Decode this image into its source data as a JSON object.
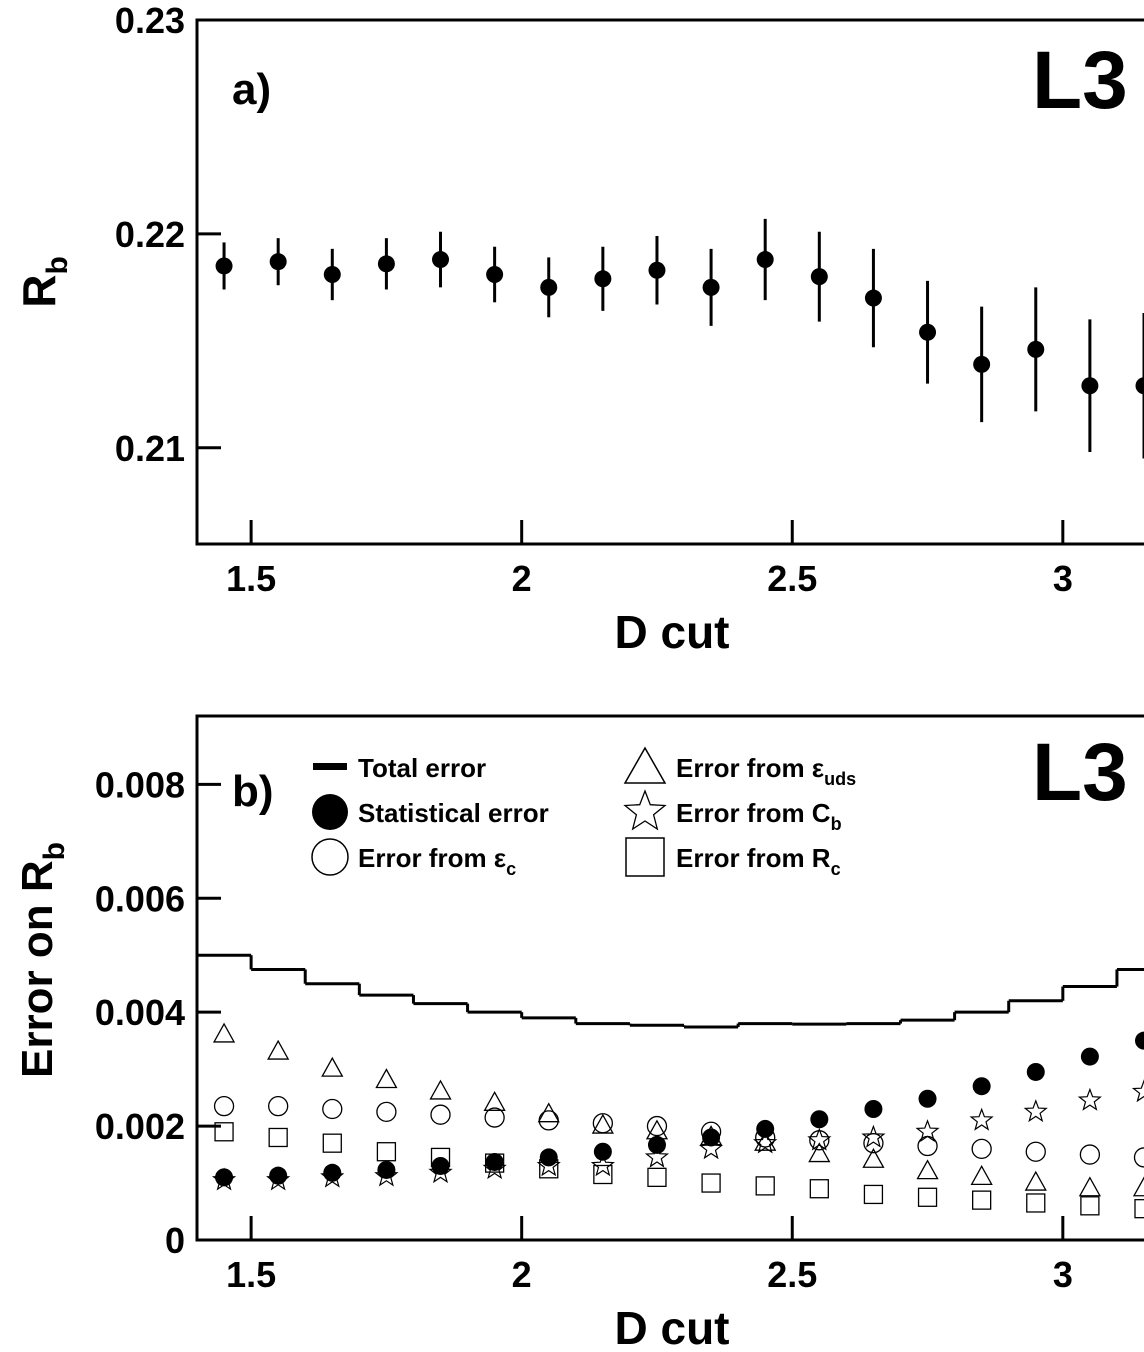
{
  "chart_data": [
    {
      "type": "scatter",
      "panel_label": "a)",
      "watermark": "L3",
      "xlabel": "D cut",
      "ylabel_main": "R",
      "ylabel_sub": "b",
      "xlim": [
        1.4,
        3.15
      ],
      "ylim": [
        0.2055,
        0.23
      ],
      "xticks": [
        1.5,
        2,
        2.5,
        3
      ],
      "xtick_labels": [
        "1.5",
        "2",
        "2.5",
        "3"
      ],
      "yticks": [
        0.21,
        0.22,
        0.23
      ],
      "ytick_labels": [
        "0.21",
        "0.22",
        "0.23"
      ],
      "grid": false,
      "series": [
        {
          "marker": "filled-circle",
          "points": [
            {
              "x": 1.45,
              "y": 0.2185,
              "err": 0.0011
            },
            {
              "x": 1.55,
              "y": 0.2187,
              "err": 0.0011
            },
            {
              "x": 1.65,
              "y": 0.2181,
              "err": 0.0012
            },
            {
              "x": 1.75,
              "y": 0.2186,
              "err": 0.0012
            },
            {
              "x": 1.85,
              "y": 0.2188,
              "err": 0.0013
            },
            {
              "x": 1.95,
              "y": 0.2181,
              "err": 0.0013
            },
            {
              "x": 2.05,
              "y": 0.2175,
              "err": 0.0014
            },
            {
              "x": 2.15,
              "y": 0.2179,
              "err": 0.0015
            },
            {
              "x": 2.25,
              "y": 0.2183,
              "err": 0.0016
            },
            {
              "x": 2.35,
              "y": 0.2175,
              "err": 0.0018
            },
            {
              "x": 2.45,
              "y": 0.2188,
              "err": 0.0019
            },
            {
              "x": 2.55,
              "y": 0.218,
              "err": 0.0021
            },
            {
              "x": 2.65,
              "y": 0.217,
              "err": 0.0023
            },
            {
              "x": 2.75,
              "y": 0.2154,
              "err": 0.0024
            },
            {
              "x": 2.85,
              "y": 0.2139,
              "err": 0.0027
            },
            {
              "x": 2.95,
              "y": 0.2146,
              "err": 0.0029
            },
            {
              "x": 3.05,
              "y": 0.2129,
              "err": 0.0031
            },
            {
              "x": 3.15,
              "y": 0.2129,
              "err": 0.0034
            }
          ]
        }
      ]
    },
    {
      "type": "scatter",
      "panel_label": "b)",
      "watermark": "L3",
      "xlabel": "D cut",
      "ylabel_main": "Error on R",
      "ylabel_sub": "b",
      "xlim": [
        1.4,
        3.15
      ],
      "ylim": [
        0,
        0.0092
      ],
      "xticks": [
        1.5,
        2,
        2.5,
        3
      ],
      "xtick_labels": [
        "1.5",
        "2",
        "2.5",
        "3"
      ],
      "yticks": [
        0,
        0.002,
        0.004,
        0.006,
        0.008
      ],
      "ytick_labels": [
        "0",
        "0.002",
        "0.004",
        "0.006",
        "0.008"
      ],
      "grid": false,
      "x": [
        1.45,
        1.55,
        1.65,
        1.75,
        1.85,
        1.95,
        2.05,
        2.15,
        2.25,
        2.35,
        2.45,
        2.55,
        2.65,
        2.75,
        2.85,
        2.95,
        3.05,
        3.15
      ],
      "series": [
        {
          "name": "Total error",
          "legend_text": "Total error",
          "legend_sub": "",
          "marker": "step-line",
          "values": [
            0.005,
            0.00475,
            0.0045,
            0.0043,
            0.00415,
            0.004,
            0.0039,
            0.0038,
            0.00377,
            0.00374,
            0.0038,
            0.00379,
            0.0038,
            0.00386,
            0.004,
            0.0042,
            0.00445,
            0.00475
          ]
        },
        {
          "name": "Statistical error",
          "legend_text": "Statistical error",
          "legend_sub": "",
          "marker": "filled-circle",
          "values": [
            0.0011,
            0.00113,
            0.00118,
            0.00123,
            0.0013,
            0.00137,
            0.00145,
            0.00155,
            0.00167,
            0.0018,
            0.00195,
            0.00212,
            0.0023,
            0.00248,
            0.0027,
            0.00295,
            0.00322,
            0.0035
          ]
        },
        {
          "name": "Error from εc",
          "legend_text": "Error from ε",
          "legend_sub": "c",
          "marker": "open-circle",
          "values": [
            0.00235,
            0.00235,
            0.0023,
            0.00225,
            0.0022,
            0.00215,
            0.0021,
            0.00205,
            0.002,
            0.0019,
            0.0018,
            0.00175,
            0.0017,
            0.00165,
            0.0016,
            0.00155,
            0.0015,
            0.00145
          ]
        },
        {
          "name": "Error from εuds",
          "legend_text": "Error from ε",
          "legend_sub": "uds",
          "marker": "open-triangle",
          "values": [
            0.0036,
            0.0033,
            0.003,
            0.0028,
            0.0026,
            0.0024,
            0.0022,
            0.002,
            0.0019,
            0.0018,
            0.0017,
            0.0015,
            0.0014,
            0.0012,
            0.0011,
            0.001,
            0.0009,
            0.0009
          ]
        },
        {
          "name": "Error from Cb",
          "legend_text": "Error from C",
          "legend_sub": "b",
          "marker": "open-star",
          "values": [
            0.00105,
            0.00105,
            0.0011,
            0.00112,
            0.00118,
            0.00125,
            0.0013,
            0.0013,
            0.00145,
            0.0016,
            0.0017,
            0.00175,
            0.0018,
            0.0019,
            0.0021,
            0.00225,
            0.00245,
            0.0026
          ]
        },
        {
          "name": "Error from Rc",
          "legend_text": "Error from R",
          "legend_sub": "c",
          "marker": "open-square",
          "values": [
            0.0019,
            0.0018,
            0.0017,
            0.00155,
            0.00145,
            0.00135,
            0.00125,
            0.00115,
            0.0011,
            0.001,
            0.00095,
            0.0009,
            0.0008,
            0.00075,
            0.0007,
            0.00065,
            0.0006,
            0.00055
          ]
        }
      ]
    }
  ]
}
